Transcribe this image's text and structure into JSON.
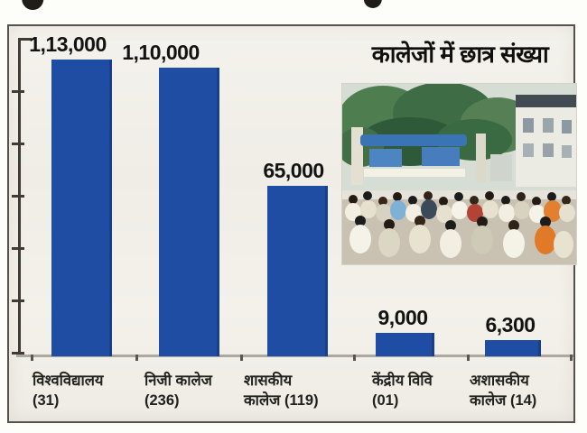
{
  "chart_data": {
    "type": "bar",
    "title": "कालेजों में छात्र संख्या",
    "categories": [
      "विश्वविद्यालय (31)",
      "निजी कालेज (236)",
      "शासकीय कालेज (119)",
      "केंद्रीय विवि (01)",
      "अशासकीय कालेज (14)"
    ],
    "categories_lines": [
      [
        "विश्वविद्यालय",
        "(31)"
      ],
      [
        "निजी कालेज",
        "(236)"
      ],
      [
        "शासकीय",
        "कालेज (119)"
      ],
      [
        "केंद्रीय विवि",
        "(01)"
      ],
      [
        "अशासकीय",
        "कालेज (14)"
      ]
    ],
    "values": [
      113000,
      110000,
      65000,
      9000,
      6300
    ],
    "value_labels": [
      "1,13,000",
      "1,10,000",
      "65,000",
      "9,000",
      "6,300"
    ],
    "xlabel": "",
    "ylabel": "",
    "ylim": [
      0,
      120000
    ],
    "y_tick_interval": 20000,
    "y_tick_labels_shown": false,
    "grid": false,
    "legend": false,
    "bar_color": "#1e4da3"
  },
  "photo": {
    "alt": "crowd of students outside a college gate"
  },
  "colors": {
    "bar": "#1e4da3",
    "panel_background": "#f2f0ea",
    "text": "#141312",
    "baseline": "#aba89f",
    "axis": "#403c35"
  }
}
